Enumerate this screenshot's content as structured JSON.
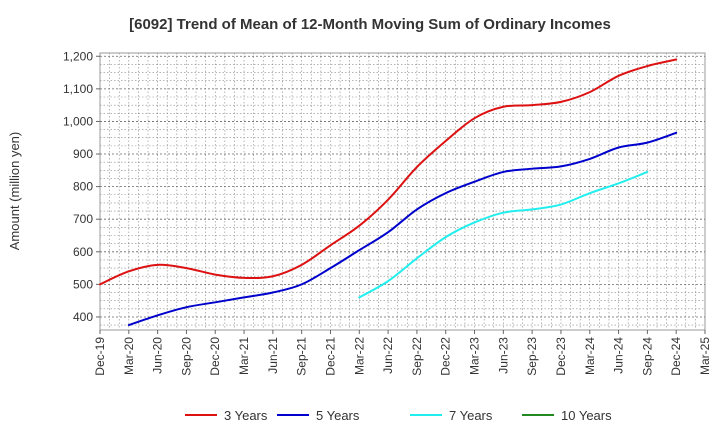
{
  "chart_data": {
    "type": "line",
    "title": "[6092]  Trend of Mean of 12-Month Moving Sum of Ordinary Incomes",
    "xlabel": "",
    "ylabel": "Amount (million yen)",
    "ylim": [
      360,
      1210
    ],
    "yticks": [
      400,
      500,
      600,
      700,
      800,
      900,
      1000,
      1100,
      1200
    ],
    "ytick_labels": [
      "400",
      "500",
      "600",
      "700",
      "800",
      "900",
      "1,000",
      "1,100",
      "1,200"
    ],
    "xticks": [
      "Dec-19",
      "Mar-20",
      "Jun-20",
      "Sep-20",
      "Dec-20",
      "Mar-21",
      "Jun-21",
      "Sep-21",
      "Dec-21",
      "Mar-22",
      "Jun-22",
      "Sep-22",
      "Dec-22",
      "Mar-23",
      "Jun-23",
      "Sep-23",
      "Dec-23",
      "Mar-24",
      "Jun-24",
      "Sep-24",
      "Dec-24",
      "Mar-25"
    ],
    "grid": true,
    "legend_position": "bottom",
    "series": [
      {
        "name": "3 Years",
        "color": "#dd1111",
        "start_index": 0,
        "values": [
          500,
          540,
          560,
          550,
          530,
          520,
          525,
          560,
          620,
          680,
          760,
          860,
          940,
          1010,
          1045,
          1050,
          1060,
          1090,
          1140,
          1170,
          1190
        ]
      },
      {
        "name": "5 Years",
        "color": "#0000cc",
        "start_index": 1,
        "values": [
          375,
          405,
          430,
          445,
          460,
          475,
          500,
          550,
          605,
          660,
          730,
          780,
          815,
          845,
          855,
          862,
          885,
          920,
          935,
          965
        ]
      },
      {
        "name": "7 Years",
        "color": "#22eeee",
        "start_index": 9,
        "values": [
          460,
          510,
          580,
          645,
          690,
          720,
          730,
          745,
          780,
          810,
          845
        ]
      },
      {
        "name": "10 Years",
        "color": "#228822",
        "start_index": 0,
        "values": []
      }
    ]
  }
}
